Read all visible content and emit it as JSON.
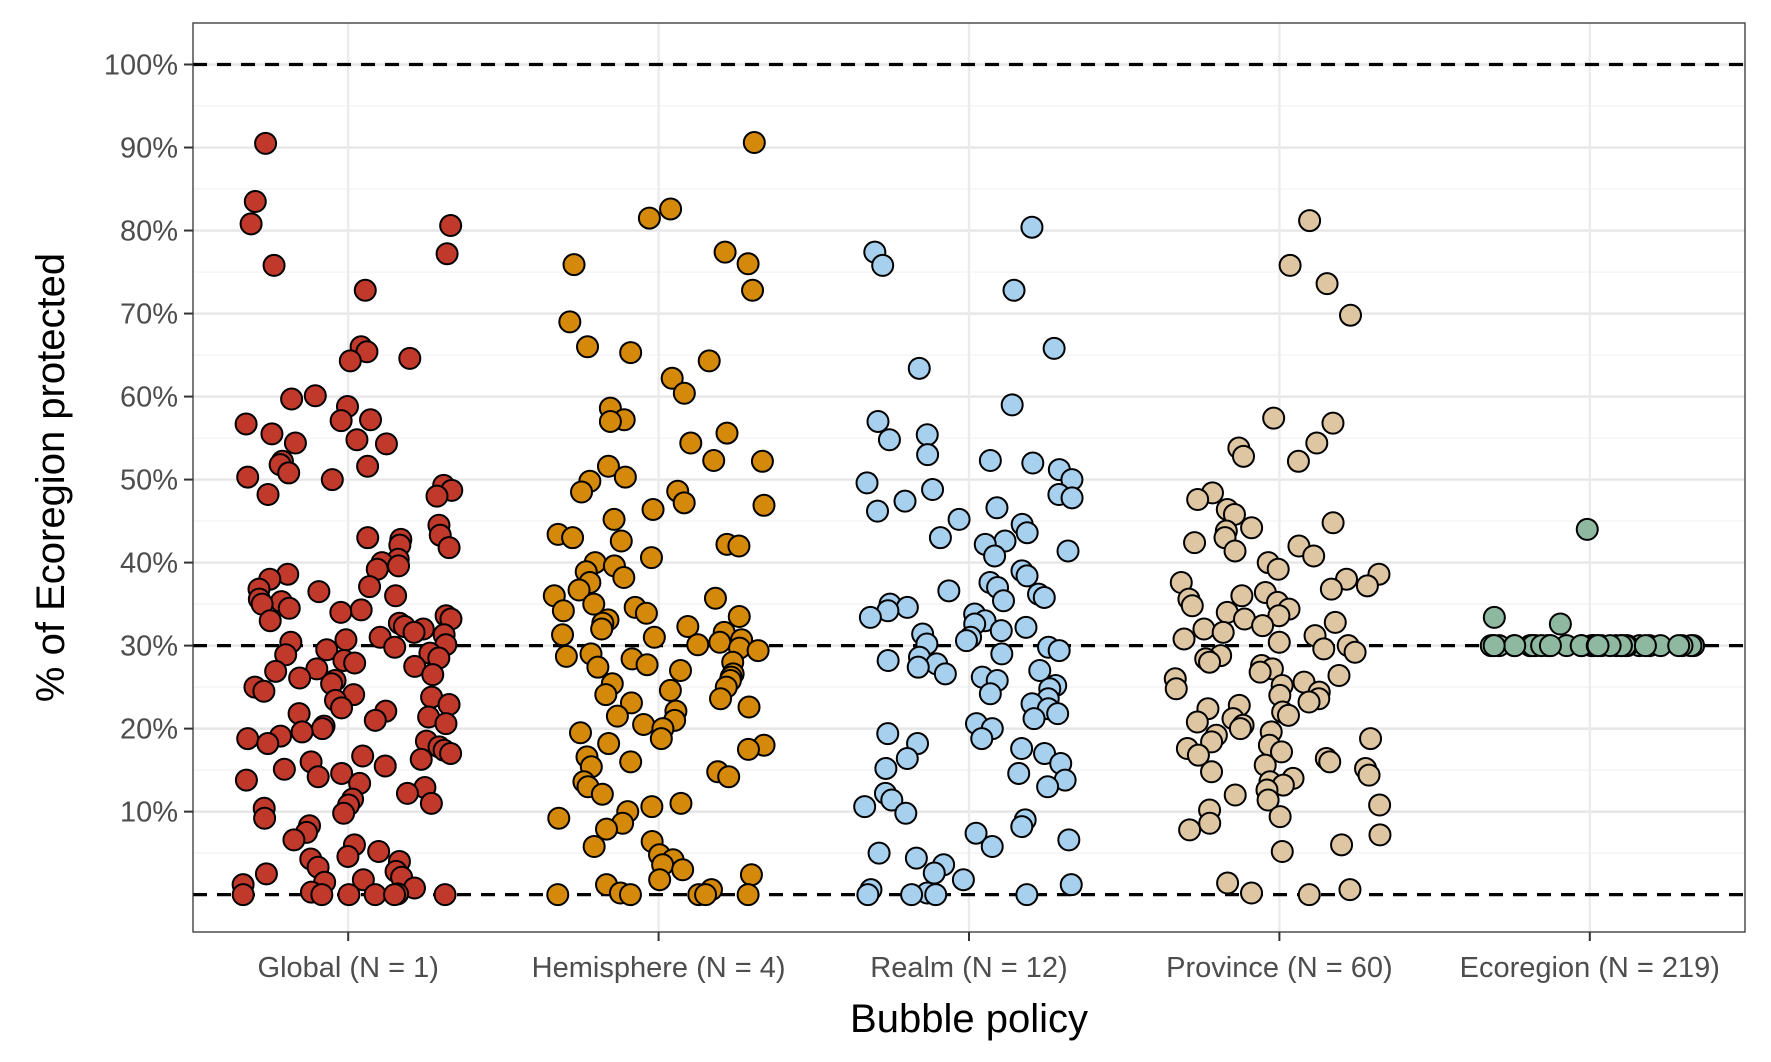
{
  "chart_data": {
    "type": "scatter",
    "xlabel": "Bubble policy",
    "ylabel": "% of Ecoregion protected",
    "ylim": [
      -4.5,
      105
    ],
    "y_ticks": [
      10,
      20,
      30,
      40,
      50,
      60,
      70,
      80,
      90,
      100
    ],
    "y_tick_labels": [
      "10%",
      "20%",
      "30%",
      "40%",
      "50%",
      "60%",
      "70%",
      "80%",
      "90%",
      "100%"
    ],
    "reference_lines": [
      0,
      30,
      100
    ],
    "grid": true,
    "legend": "none",
    "categories": [
      "Global (N = 1)",
      "Hemisphere (N = 4)",
      "Realm (N = 12)",
      "Province (N = 60)",
      "Ecoregion (N = 219)"
    ],
    "series": [
      {
        "category": "Global (N = 1)",
        "color": "#c0392b",
        "values": [
          90.5,
          83.5,
          80.8,
          80.6,
          77.2,
          75.8,
          72.8,
          66.0,
          65.4,
          64.6,
          64.3,
          60.1,
          59.7,
          58.8,
          57.2,
          57.1,
          56.7,
          55.5,
          54.8,
          54.4,
          54.3,
          52.2,
          51.8,
          51.6,
          50.8,
          50.3,
          50.0,
          49.3,
          48.7,
          48.2,
          48.0,
          44.5,
          43.3,
          43.0,
          42.8,
          42.1,
          41.8,
          40.4,
          40.0,
          39.6,
          39.2,
          38.6,
          38.0,
          37.1,
          36.8,
          36.5,
          36.0,
          35.6,
          35.3,
          35.0,
          34.5,
          34.3,
          34.0,
          33.6,
          33.2,
          33.0,
          32.7,
          32.3,
          32.0,
          31.6,
          31.3,
          31.0,
          30.7,
          30.4,
          30.1,
          29.8,
          29.5,
          29.1,
          28.9,
          28.5,
          28.2,
          27.9,
          27.5,
          27.2,
          26.9,
          26.5,
          26.1,
          25.8,
          25.4,
          25.0,
          24.5,
          24.1,
          23.8,
          23.4,
          22.9,
          22.5,
          22.1,
          21.8,
          21.4,
          21.0,
          20.6,
          20.3,
          20.0,
          19.6,
          19.1,
          18.8,
          18.5,
          18.2,
          17.8,
          17.4,
          17.0,
          16.7,
          16.3,
          16.0,
          15.5,
          15.1,
          14.6,
          14.2,
          13.8,
          13.4,
          12.9,
          12.2,
          11.5,
          11.0,
          10.8,
          10.4,
          9.8,
          9.2,
          8.3,
          7.5,
          6.6,
          6.0,
          5.2,
          4.6,
          4.3,
          4.0,
          3.3,
          2.8,
          2.5,
          2.1,
          1.8,
          1.5,
          1.2,
          0.8,
          0.3,
          0.1,
          0.0,
          0.0,
          0.0,
          0.0,
          0.0,
          0.0
        ]
      },
      {
        "category": "Hemisphere (N = 4)",
        "color": "#d4890a",
        "values": [
          90.6,
          82.6,
          81.5,
          77.4,
          76.0,
          75.9,
          72.8,
          69.0,
          66.0,
          65.3,
          64.3,
          62.2,
          60.4,
          58.6,
          57.2,
          57.0,
          55.6,
          54.4,
          52.3,
          52.2,
          51.6,
          50.3,
          49.8,
          48.6,
          48.5,
          47.2,
          46.9,
          46.4,
          45.2,
          43.4,
          43.0,
          42.6,
          42.2,
          42.0,
          40.6,
          40.0,
          39.6,
          38.9,
          38.2,
          37.6,
          36.7,
          36.0,
          35.7,
          35.0,
          34.6,
          34.2,
          33.9,
          33.5,
          33.1,
          32.7,
          32.3,
          32.0,
          31.6,
          31.3,
          31.0,
          30.7,
          30.4,
          30.1,
          29.7,
          29.4,
          29.0,
          28.7,
          28.4,
          28.0,
          27.7,
          27.4,
          27.0,
          26.6,
          26.2,
          25.8,
          25.4,
          25.0,
          24.6,
          24.1,
          23.6,
          23.1,
          22.6,
          22.1,
          21.5,
          21.0,
          20.5,
          20.0,
          19.5,
          18.8,
          18.2,
          18.0,
          17.5,
          16.6,
          16.0,
          15.4,
          14.8,
          14.2,
          13.6,
          13.0,
          12.1,
          11.0,
          10.6,
          10.0,
          9.2,
          8.6,
          7.9,
          6.4,
          5.8,
          4.8,
          4.2,
          3.6,
          3.0,
          2.4,
          1.8,
          1.2,
          0.6,
          0.2,
          0.0,
          0.0,
          0.0,
          0.0,
          0.0
        ]
      },
      {
        "category": "Realm (N = 12)",
        "color": "#a6d0ee",
        "values": [
          80.4,
          77.4,
          75.8,
          72.8,
          65.8,
          63.4,
          59.0,
          57.0,
          55.4,
          54.8,
          53.0,
          52.3,
          52.0,
          51.2,
          50.0,
          49.6,
          48.8,
          48.2,
          47.8,
          47.4,
          46.6,
          46.2,
          45.2,
          44.6,
          43.6,
          43.0,
          42.6,
          42.2,
          41.4,
          40.8,
          39.0,
          38.4,
          37.6,
          37.0,
          36.6,
          36.2,
          35.8,
          35.4,
          35.0,
          34.6,
          34.2,
          33.8,
          33.4,
          33.0,
          32.6,
          32.2,
          31.8,
          31.4,
          31.0,
          30.6,
          30.2,
          29.8,
          29.4,
          29.0,
          28.6,
          28.2,
          27.8,
          27.4,
          27.0,
          26.6,
          26.2,
          25.8,
          25.2,
          24.8,
          24.2,
          23.6,
          23.0,
          22.4,
          21.8,
          21.2,
          20.6,
          20.0,
          19.4,
          18.8,
          18.2,
          17.6,
          17.0,
          16.4,
          15.8,
          15.2,
          14.6,
          13.8,
          13.0,
          12.2,
          11.4,
          10.6,
          9.8,
          9.0,
          8.2,
          7.4,
          6.6,
          5.8,
          5.0,
          4.4,
          3.6,
          2.6,
          1.8,
          1.2,
          0.6,
          0.2,
          0.0,
          0.0,
          0.0,
          0.0
        ]
      },
      {
        "category": "Province (N = 60)",
        "color": "#dec6a2",
        "values": [
          81.2,
          75.8,
          73.6,
          69.8,
          57.4,
          56.8,
          54.4,
          53.8,
          52.8,
          52.2,
          48.4,
          47.6,
          46.4,
          45.8,
          44.8,
          44.2,
          43.8,
          43.0,
          42.4,
          42.0,
          41.4,
          40.8,
          40.0,
          39.2,
          38.6,
          38.0,
          37.6,
          37.2,
          36.8,
          36.4,
          36.0,
          35.6,
          35.2,
          34.8,
          34.4,
          34.0,
          33.6,
          33.2,
          32.8,
          32.4,
          32.0,
          31.6,
          31.2,
          30.8,
          30.4,
          30.0,
          29.6,
          29.2,
          28.8,
          28.4,
          28.0,
          27.6,
          27.2,
          26.8,
          26.4,
          26.0,
          25.6,
          25.2,
          24.8,
          24.4,
          24.0,
          23.6,
          23.2,
          22.8,
          22.4,
          22.0,
          21.6,
          21.2,
          20.8,
          20.4,
          20.0,
          19.6,
          19.2,
          18.8,
          18.4,
          18.0,
          17.6,
          17.2,
          16.8,
          16.4,
          16.0,
          15.6,
          15.2,
          14.8,
          14.4,
          14.0,
          13.6,
          13.2,
          12.6,
          12.0,
          11.4,
          10.8,
          10.2,
          9.4,
          8.6,
          7.8,
          7.2,
          6.0,
          5.2,
          1.4,
          0.6,
          0.2,
          0.0
        ]
      },
      {
        "category": "Ecoregion (N = 219)",
        "color": "#8fb8a0",
        "values": [
          44.0,
          33.4,
          32.6,
          30.0,
          30.0,
          30.0,
          30.0,
          30.0,
          30.0,
          30.0,
          30.0,
          30.0,
          30.0,
          30.0,
          30.0,
          30.0,
          30.0,
          30.0,
          30.0,
          30.0,
          30.0,
          30.0,
          30.0,
          30.0,
          30.0,
          30.0,
          30.0,
          30.0,
          30.0,
          30.0,
          30.0,
          30.0,
          30.0,
          30.0,
          30.0,
          30.0,
          30.0,
          30.0,
          30.0,
          30.0
        ]
      }
    ]
  }
}
